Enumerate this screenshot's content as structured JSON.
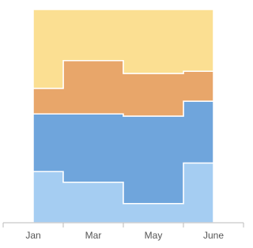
{
  "chart_data": {
    "type": "stacked-step-area",
    "categories": [
      "Jan",
      "Mar",
      "May",
      "June"
    ],
    "ylim": [
      0,
      100
    ],
    "series": [
      {
        "color": "#a5cdf2",
        "values": [
          24,
          19,
          9,
          28
        ]
      },
      {
        "color": "#6fa5dc",
        "values": [
          27,
          32,
          41,
          29
        ]
      },
      {
        "color": "#e8a66a",
        "values": [
          12,
          25,
          20,
          14
        ]
      },
      {
        "color": "#fbdf92",
        "values": [
          37,
          24,
          30,
          29
        ]
      }
    ]
  }
}
